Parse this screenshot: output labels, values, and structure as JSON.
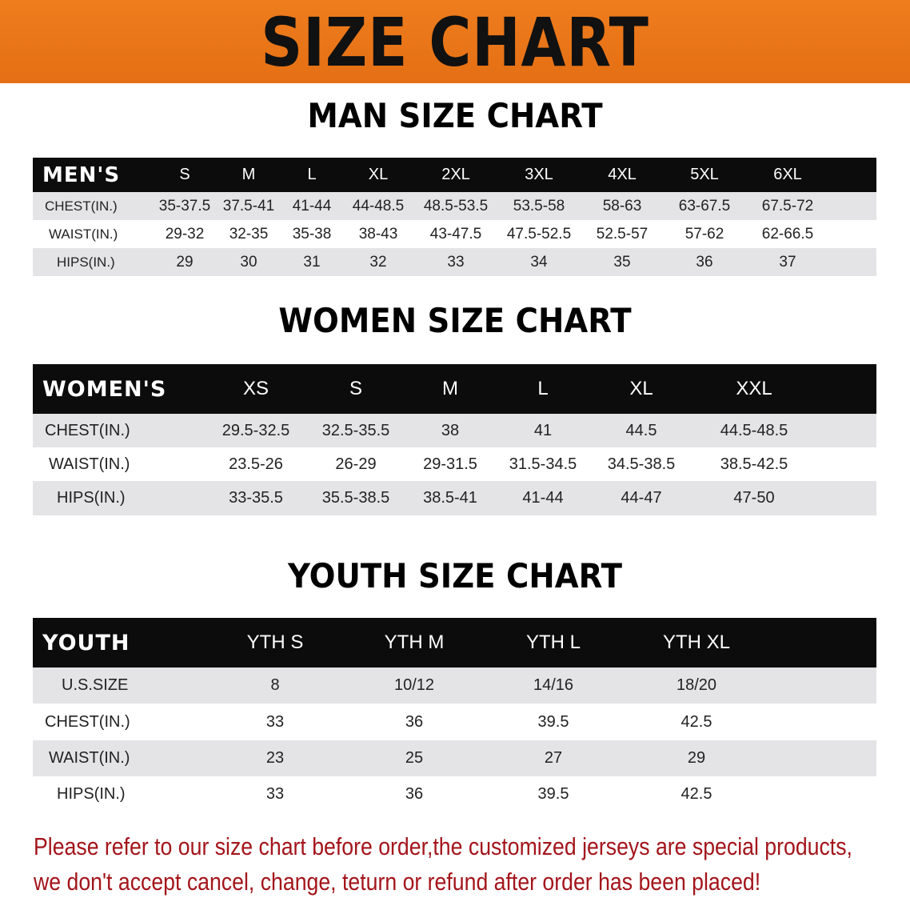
{
  "header": {
    "title": "SIZE CHART",
    "color": "#e8761a"
  },
  "men": {
    "title": "MAN SIZE CHART",
    "label": "MEN'S",
    "columns": [
      "S",
      "M",
      "L",
      "XL",
      "2XL",
      "3XL",
      "4XL",
      "5XL",
      "6XL"
    ],
    "rows": [
      {
        "label": "CHEST(IN.)",
        "values": [
          "35-37.5",
          "37.5-41",
          "41-44",
          "44-48.5",
          "48.5-53.5",
          "53.5-58",
          "58-63",
          "63-67.5",
          "67.5-72"
        ]
      },
      {
        "label": "WAIST(IN.)",
        "values": [
          "29-32",
          "32-35",
          "35-38",
          "38-43",
          "43-47.5",
          "47.5-52.5",
          "52.5-57",
          "57-62",
          "62-66.5"
        ]
      },
      {
        "label": "HIPS(IN.)",
        "values": [
          "29",
          "30",
          "31",
          "32",
          "33",
          "34",
          "35",
          "36",
          "37"
        ]
      }
    ]
  },
  "women": {
    "title": "WOMEN SIZE CHART",
    "label": "WOMEN'S",
    "columns": [
      "XS",
      "S",
      "M",
      "L",
      "XL",
      "XXL"
    ],
    "rows": [
      {
        "label": "CHEST(IN.)",
        "values": [
          "29.5-32.5",
          "32.5-35.5",
          "38",
          "41",
          "44.5",
          "44.5-48.5"
        ]
      },
      {
        "label": "WAIST(IN.)",
        "values": [
          "23.5-26",
          "26-29",
          "29-31.5",
          "31.5-34.5",
          "34.5-38.5",
          "38.5-42.5"
        ]
      },
      {
        "label": "HIPS(IN.)",
        "values": [
          "33-35.5",
          "35.5-38.5",
          "38.5-41",
          "41-44",
          "44-47",
          "47-50"
        ]
      }
    ]
  },
  "youth": {
    "title": "YOUTH SIZE CHART",
    "label": "YOUTH",
    "columns": [
      "YTH S",
      "YTH M",
      "YTH L",
      "YTH XL"
    ],
    "rows": [
      {
        "label": "U.S.SIZE",
        "values": [
          "8",
          "10/12",
          "14/16",
          "18/20"
        ]
      },
      {
        "label": "CHEST(IN.)",
        "values": [
          "33",
          "36",
          "39.5",
          "42.5"
        ]
      },
      {
        "label": "WAIST(IN.)",
        "values": [
          "23",
          "25",
          "27",
          "29"
        ]
      },
      {
        "label": "HIPS(IN.)",
        "values": [
          "33",
          "36",
          "39.5",
          "42.5"
        ]
      }
    ]
  },
  "notice": {
    "line1": "Please refer to our size chart before order,the customized jerseys are special products,",
    "line2": "we don't accept cancel, change, teturn or refund after order has been placed!",
    "color": "#a3151b"
  }
}
